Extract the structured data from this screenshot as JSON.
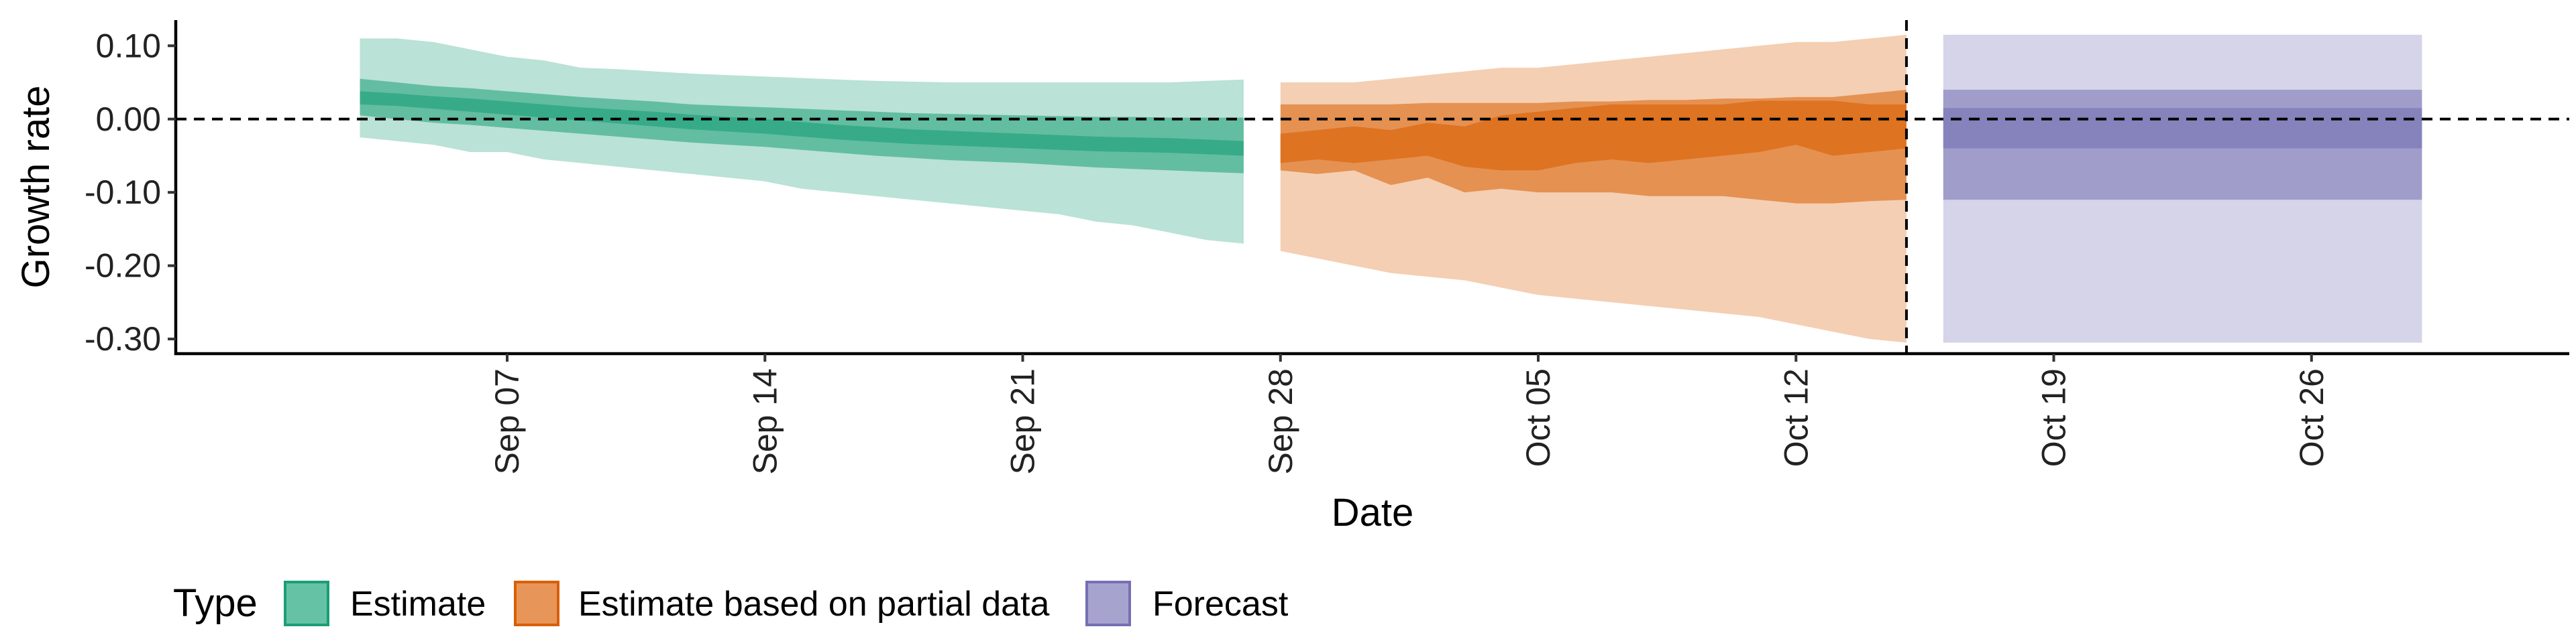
{
  "chart_data": {
    "type": "area",
    "xlabel": "Date",
    "ylabel": "Growth rate",
    "x_axis": {
      "type": "date",
      "range": [
        "2020-08-29",
        "2020-11-02"
      ],
      "tick_dates": [
        "2020-09-07",
        "2020-09-14",
        "2020-09-21",
        "2020-09-28",
        "2020-10-05",
        "2020-10-12",
        "2020-10-19",
        "2020-10-26"
      ],
      "tick_labels": [
        "Sep 07",
        "Sep 14",
        "Sep 21",
        "Sep 28",
        "Oct 05",
        "Oct 12",
        "Oct 19",
        "Oct 26"
      ]
    },
    "y_axis": {
      "range": [
        -0.32,
        0.135
      ],
      "ticks": [
        0.1,
        0.0,
        -0.1,
        -0.2,
        -0.3
      ],
      "tick_labels": [
        "0.10",
        "0.00",
        "-0.10",
        "-0.20",
        "-0.30"
      ]
    },
    "reference_lines": {
      "horizontal_y": 0.0,
      "vertical_x": "2020-10-15"
    },
    "grid": false,
    "legend": {
      "position": "bottom-left",
      "title": "Type",
      "items": [
        {
          "label": "Estimate",
          "fill": "#66c2a5",
          "stroke": "#1b9e77"
        },
        {
          "label": "Estimate based on partial data",
          "fill": "#e8955a",
          "stroke": "#d95f02"
        },
        {
          "label": "Forecast",
          "fill": "#a7a3cf",
          "stroke": "#7570b3"
        }
      ]
    },
    "series": [
      {
        "name": "Estimate",
        "color": "#1b9e77",
        "x": [
          "2020-09-03",
          "2020-09-04",
          "2020-09-05",
          "2020-09-06",
          "2020-09-07",
          "2020-09-08",
          "2020-09-09",
          "2020-09-10",
          "2020-09-11",
          "2020-09-12",
          "2020-09-13",
          "2020-09-14",
          "2020-09-15",
          "2020-09-16",
          "2020-09-17",
          "2020-09-18",
          "2020-09-19",
          "2020-09-20",
          "2020-09-21",
          "2020-09-22",
          "2020-09-23",
          "2020-09-24",
          "2020-09-25",
          "2020-09-26",
          "2020-09-27"
        ],
        "bands": [
          {
            "level": "90%",
            "lower": [
              -0.025,
              -0.03,
              -0.035,
              -0.045,
              -0.045,
              -0.055,
              -0.06,
              -0.065,
              -0.07,
              -0.075,
              -0.08,
              -0.085,
              -0.095,
              -0.1,
              -0.105,
              -0.11,
              -0.115,
              -0.12,
              -0.125,
              -0.13,
              -0.14,
              -0.145,
              -0.155,
              -0.165,
              -0.17
            ],
            "upper": [
              0.11,
              0.11,
              0.105,
              0.095,
              0.085,
              0.08,
              0.07,
              0.068,
              0.065,
              0.062,
              0.06,
              0.058,
              0.056,
              0.054,
              0.052,
              0.051,
              0.05,
              0.05,
              0.05,
              0.05,
              0.05,
              0.05,
              0.05,
              0.052,
              0.054
            ]
          },
          {
            "level": "50%",
            "lower": [
              0.005,
              0.0,
              -0.005,
              -0.008,
              -0.012,
              -0.016,
              -0.02,
              -0.024,
              -0.028,
              -0.032,
              -0.035,
              -0.038,
              -0.042,
              -0.046,
              -0.05,
              -0.053,
              -0.056,
              -0.058,
              -0.06,
              -0.063,
              -0.066,
              -0.068,
              -0.07,
              -0.072,
              -0.074
            ],
            "upper": [
              0.055,
              0.05,
              0.045,
              0.042,
              0.038,
              0.034,
              0.03,
              0.027,
              0.024,
              0.02,
              0.018,
              0.016,
              0.014,
              0.012,
              0.01,
              0.008,
              0.007,
              0.006,
              0.005,
              0.004,
              0.003,
              0.003,
              0.002,
              0.002,
              0.002
            ]
          },
          {
            "level": "20%",
            "lower": [
              0.02,
              0.018,
              0.014,
              0.01,
              0.006,
              0.002,
              -0.002,
              -0.006,
              -0.01,
              -0.014,
              -0.017,
              -0.02,
              -0.024,
              -0.028,
              -0.031,
              -0.034,
              -0.036,
              -0.038,
              -0.04,
              -0.042,
              -0.044,
              -0.045,
              -0.046,
              -0.048,
              -0.05
            ],
            "upper": [
              0.038,
              0.035,
              0.031,
              0.028,
              0.024,
              0.02,
              0.016,
              0.013,
              0.01,
              0.006,
              0.003,
              0.0,
              -0.004,
              -0.008,
              -0.011,
              -0.014,
              -0.016,
              -0.018,
              -0.02,
              -0.022,
              -0.024,
              -0.025,
              -0.026,
              -0.028,
              -0.03
            ]
          }
        ]
      },
      {
        "name": "Estimate based on partial data",
        "color": "#d95f02",
        "x": [
          "2020-09-28",
          "2020-09-29",
          "2020-09-30",
          "2020-10-01",
          "2020-10-02",
          "2020-10-03",
          "2020-10-04",
          "2020-10-05",
          "2020-10-06",
          "2020-10-07",
          "2020-10-08",
          "2020-10-09",
          "2020-10-10",
          "2020-10-11",
          "2020-10-12",
          "2020-10-13",
          "2020-10-14",
          "2020-10-15"
        ],
        "bands": [
          {
            "level": "90%",
            "lower": [
              -0.18,
              -0.19,
              -0.2,
              -0.21,
              -0.215,
              -0.22,
              -0.23,
              -0.24,
              -0.245,
              -0.25,
              -0.255,
              -0.26,
              -0.265,
              -0.27,
              -0.28,
              -0.29,
              -0.3,
              -0.305
            ],
            "upper": [
              0.05,
              0.05,
              0.05,
              0.055,
              0.06,
              0.065,
              0.07,
              0.07,
              0.075,
              0.08,
              0.085,
              0.09,
              0.095,
              0.1,
              0.105,
              0.105,
              0.11,
              0.115
            ]
          },
          {
            "level": "50%",
            "lower": [
              -0.07,
              -0.075,
              -0.07,
              -0.09,
              -0.08,
              -0.1,
              -0.095,
              -0.1,
              -0.1,
              -0.1,
              -0.105,
              -0.105,
              -0.105,
              -0.11,
              -0.115,
              -0.115,
              -0.112,
              -0.11
            ],
            "upper": [
              0.02,
              0.02,
              0.02,
              0.02,
              0.022,
              0.022,
              0.022,
              0.022,
              0.024,
              0.024,
              0.026,
              0.026,
              0.028,
              0.028,
              0.03,
              0.03,
              0.035,
              0.04
            ]
          },
          {
            "level": "20%",
            "lower": [
              -0.06,
              -0.055,
              -0.06,
              -0.055,
              -0.05,
              -0.065,
              -0.07,
              -0.07,
              -0.06,
              -0.055,
              -0.06,
              -0.055,
              -0.05,
              -0.045,
              -0.035,
              -0.05,
              -0.045,
              -0.04
            ],
            "upper": [
              -0.02,
              -0.015,
              -0.01,
              -0.015,
              -0.005,
              -0.01,
              0.005,
              0.01,
              0.015,
              0.02,
              0.02,
              0.02,
              0.02,
              0.025,
              0.025,
              0.025,
              0.02,
              0.02
            ]
          }
        ]
      },
      {
        "name": "Forecast",
        "color": "#7570b3",
        "x": [
          "2020-10-16",
          "2020-10-29"
        ],
        "bands": [
          {
            "level": "90%",
            "lower": [
              -0.305,
              -0.305
            ],
            "upper": [
              0.115,
              0.115
            ]
          },
          {
            "level": "50%",
            "lower": [
              -0.11,
              -0.11
            ],
            "upper": [
              0.04,
              0.04
            ]
          },
          {
            "level": "20%",
            "lower": [
              -0.04,
              -0.04
            ],
            "upper": [
              0.015,
              0.015
            ]
          }
        ]
      }
    ]
  }
}
